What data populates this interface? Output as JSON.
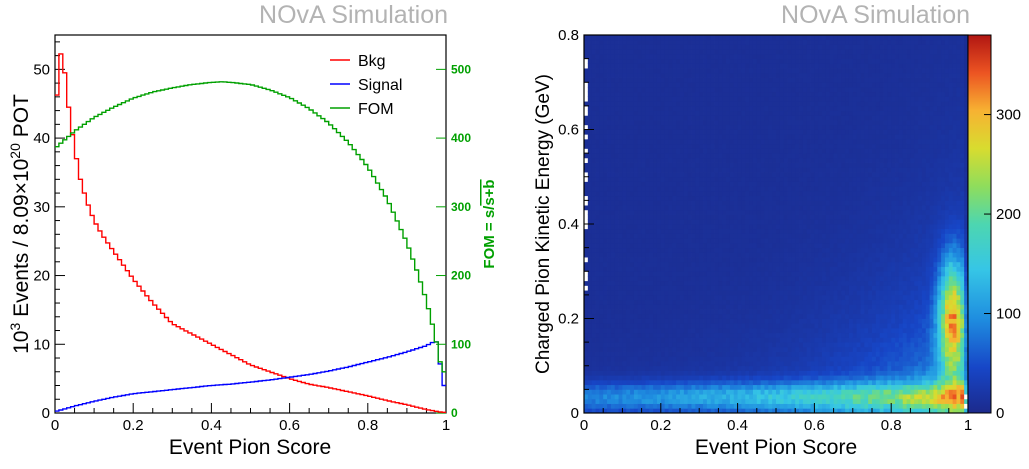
{
  "charts": {
    "left": {
      "label": "NOvA Simulation",
      "xlabel": "Event Pion Score",
      "ylabel_prefix": "10",
      "ylabel_exp1": "3",
      "ylabel_mid": " Events / 8.09×10",
      "ylabel_exp2": "20",
      "ylabel_suffix": " POT",
      "y2label_prefix": "FOM = s/",
      "y2label_sqrt": "s+b",
      "xticks": [
        "0",
        "0.2",
        "0.4",
        "0.6",
        "0.8",
        "1"
      ],
      "yticks": [
        "0",
        "10",
        "20",
        "30",
        "40",
        "50"
      ],
      "y2ticks": [
        "0",
        "100",
        "200",
        "300",
        "400",
        "500"
      ]
    },
    "right": {
      "label": "NOvA Simulation",
      "xlabel": "Event Pion Score",
      "ylabel": "Charged Pion Kinetic Energy (GeV)",
      "xticks": [
        "0",
        "0.2",
        "0.4",
        "0.6",
        "0.8",
        "1"
      ],
      "yticks": [
        "0",
        "0.2",
        "0.4",
        "0.6",
        "0.8"
      ],
      "zticks": [
        "0",
        "100",
        "200",
        "300"
      ]
    }
  },
  "chart_data": [
    {
      "type": "line",
      "xlabel": "Event Pion Score",
      "ylabel": "10^3 Events / 8.09×10^20 POT",
      "y2label": "FOM = s/√(s+b)",
      "xlim": [
        0,
        1
      ],
      "ylim": [
        0,
        55
      ],
      "y2lim": [
        0,
        550
      ],
      "legend_position": "top-right",
      "series": [
        {
          "name": "Bkg",
          "color": "#ff0000",
          "axis": "left",
          "x": [
            0.0,
            0.01,
            0.02,
            0.03,
            0.04,
            0.05,
            0.06,
            0.08,
            0.1,
            0.12,
            0.15,
            0.2,
            0.25,
            0.3,
            0.35,
            0.4,
            0.45,
            0.5,
            0.55,
            0.6,
            0.65,
            0.7,
            0.75,
            0.8,
            0.85,
            0.9,
            0.95,
            0.98,
            0.99
          ],
          "y": [
            40,
            52.5,
            52,
            47,
            42,
            39,
            35,
            31,
            28,
            26,
            23.5,
            19.5,
            16,
            13,
            11.5,
            10,
            8.5,
            7,
            6,
            5,
            4.2,
            3.7,
            3.1,
            2.5,
            1.8,
            1.2,
            0.5,
            0.2,
            0.1
          ]
        },
        {
          "name": "Signal",
          "color": "#0000ff",
          "axis": "left",
          "x": [
            0.0,
            0.05,
            0.1,
            0.15,
            0.2,
            0.25,
            0.3,
            0.35,
            0.4,
            0.45,
            0.5,
            0.55,
            0.6,
            0.65,
            0.7,
            0.75,
            0.8,
            0.85,
            0.9,
            0.95,
            0.97,
            0.98,
            0.99
          ],
          "y": [
            0.2,
            1.0,
            1.7,
            2.3,
            2.8,
            3.1,
            3.4,
            3.7,
            4.0,
            4.2,
            4.5,
            4.8,
            5.2,
            5.6,
            6.1,
            6.7,
            7.4,
            8.1,
            8.9,
            9.8,
            10.4,
            10.3,
            4.0
          ]
        },
        {
          "name": "FOM",
          "color": "#00a000",
          "axis": "right",
          "x": [
            0.0,
            0.02,
            0.05,
            0.1,
            0.15,
            0.2,
            0.25,
            0.3,
            0.35,
            0.4,
            0.43,
            0.45,
            0.5,
            0.55,
            0.6,
            0.65,
            0.7,
            0.75,
            0.8,
            0.85,
            0.9,
            0.93,
            0.95,
            0.97,
            0.99
          ],
          "y": [
            385,
            395,
            410,
            430,
            445,
            458,
            467,
            473,
            478,
            481,
            482,
            481,
            478,
            470,
            459,
            443,
            422,
            394,
            358,
            311,
            248,
            200,
            163,
            118,
            60
          ]
        }
      ]
    },
    {
      "type": "heatmap",
      "xlabel": "Event Pion Score",
      "ylabel": "Charged Pion Kinetic Energy (GeV)",
      "xlim": [
        0,
        1
      ],
      "ylim": [
        0,
        0.8
      ],
      "zlim": [
        0,
        380
      ],
      "colorbar_ticks": [
        0,
        100,
        200,
        300
      ],
      "colorscale": "rainbow"
    }
  ]
}
